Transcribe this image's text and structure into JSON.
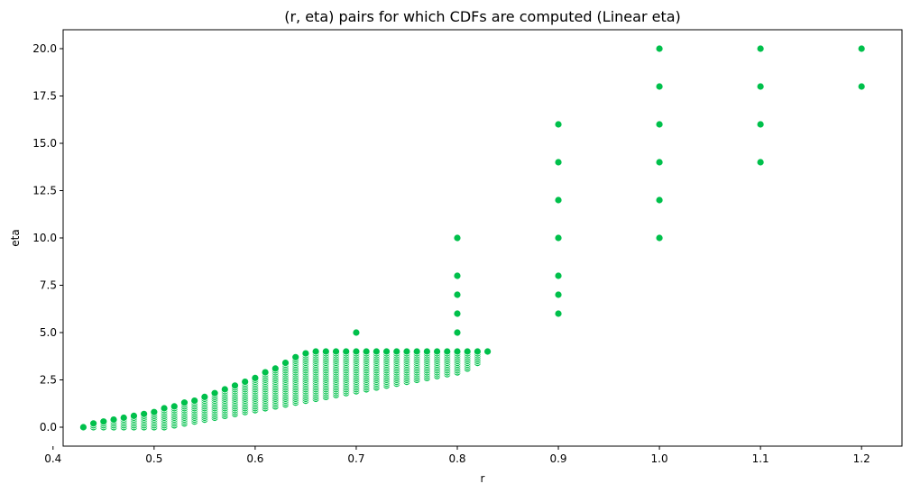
{
  "chart_data": {
    "type": "scatter",
    "title": "(r, eta) pairs for which CDFs are computed (Linear eta)",
    "xlabel": "r",
    "ylabel": "eta",
    "xlim": [
      0.41,
      1.24
    ],
    "ylim": [
      -1.0,
      21.0
    ],
    "xticks": [
      0.4,
      0.5,
      0.6,
      0.7,
      0.8,
      0.9,
      1.0,
      1.1,
      1.2
    ],
    "xtick_labels": [
      "0.4",
      "0.5",
      "0.6",
      "0.7",
      "0.8",
      "0.9",
      "1.0",
      "1.1",
      "1.2"
    ],
    "yticks": [
      0.0,
      2.5,
      5.0,
      7.5,
      10.0,
      12.5,
      15.0,
      17.5,
      20.0
    ],
    "ytick_labels": [
      "0.0",
      "2.5",
      "5.0",
      "7.5",
      "10.0",
      "12.5",
      "15.0",
      "17.5",
      "20.0"
    ],
    "grid": false,
    "marker_color": "#00c04b",
    "dense_band": {
      "r_values": [
        0.43,
        0.44,
        0.45,
        0.46,
        0.47,
        0.48,
        0.49,
        0.5,
        0.51,
        0.52,
        0.53,
        0.54,
        0.55,
        0.56,
        0.57,
        0.58,
        0.59,
        0.6,
        0.61,
        0.62,
        0.63,
        0.64,
        0.65,
        0.66,
        0.67,
        0.68,
        0.69,
        0.7,
        0.71,
        0.72,
        0.73,
        0.74,
        0.75,
        0.76,
        0.77,
        0.78,
        0.79,
        0.8,
        0.81,
        0.82,
        0.83
      ],
      "eta_min": [
        0.0,
        0.0,
        0.0,
        0.0,
        0.0,
        0.0,
        0.0,
        0.0,
        0.0,
        0.1,
        0.2,
        0.3,
        0.4,
        0.5,
        0.6,
        0.7,
        0.8,
        0.9,
        1.0,
        1.1,
        1.2,
        1.3,
        1.4,
        1.5,
        1.6,
        1.7,
        1.8,
        1.9,
        2.0,
        2.1,
        2.2,
        2.3,
        2.4,
        2.5,
        2.6,
        2.7,
        2.8,
        2.9,
        3.1,
        3.4,
        4.0
      ],
      "eta_max": [
        0.0,
        0.2,
        0.3,
        0.4,
        0.5,
        0.6,
        0.7,
        0.8,
        1.0,
        1.1,
        1.3,
        1.4,
        1.6,
        1.8,
        2.0,
        2.2,
        2.4,
        2.6,
        2.9,
        3.1,
        3.4,
        3.7,
        3.9,
        4.0,
        4.0,
        4.0,
        4.0,
        4.0,
        4.0,
        4.0,
        4.0,
        4.0,
        4.0,
        4.0,
        4.0,
        4.0,
        4.0,
        4.0,
        4.0,
        4.0,
        4.0
      ],
      "eta_step": 0.1
    },
    "sparse_points": [
      {
        "r": 0.7,
        "eta": 5.0
      },
      {
        "r": 0.8,
        "eta": 5.0
      },
      {
        "r": 0.8,
        "eta": 6.0
      },
      {
        "r": 0.8,
        "eta": 7.0
      },
      {
        "r": 0.8,
        "eta": 8.0
      },
      {
        "r": 0.8,
        "eta": 10.0
      },
      {
        "r": 0.9,
        "eta": 6.0
      },
      {
        "r": 0.9,
        "eta": 7.0
      },
      {
        "r": 0.9,
        "eta": 8.0
      },
      {
        "r": 0.9,
        "eta": 10.0
      },
      {
        "r": 0.9,
        "eta": 12.0
      },
      {
        "r": 0.9,
        "eta": 14.0
      },
      {
        "r": 0.9,
        "eta": 16.0
      },
      {
        "r": 1.0,
        "eta": 10.0
      },
      {
        "r": 1.0,
        "eta": 12.0
      },
      {
        "r": 1.0,
        "eta": 14.0
      },
      {
        "r": 1.0,
        "eta": 16.0
      },
      {
        "r": 1.0,
        "eta": 18.0
      },
      {
        "r": 1.0,
        "eta": 20.0
      },
      {
        "r": 1.1,
        "eta": 14.0
      },
      {
        "r": 1.1,
        "eta": 16.0
      },
      {
        "r": 1.1,
        "eta": 18.0
      },
      {
        "r": 1.1,
        "eta": 20.0
      },
      {
        "r": 1.2,
        "eta": 18.0
      },
      {
        "r": 1.2,
        "eta": 20.0
      }
    ]
  }
}
